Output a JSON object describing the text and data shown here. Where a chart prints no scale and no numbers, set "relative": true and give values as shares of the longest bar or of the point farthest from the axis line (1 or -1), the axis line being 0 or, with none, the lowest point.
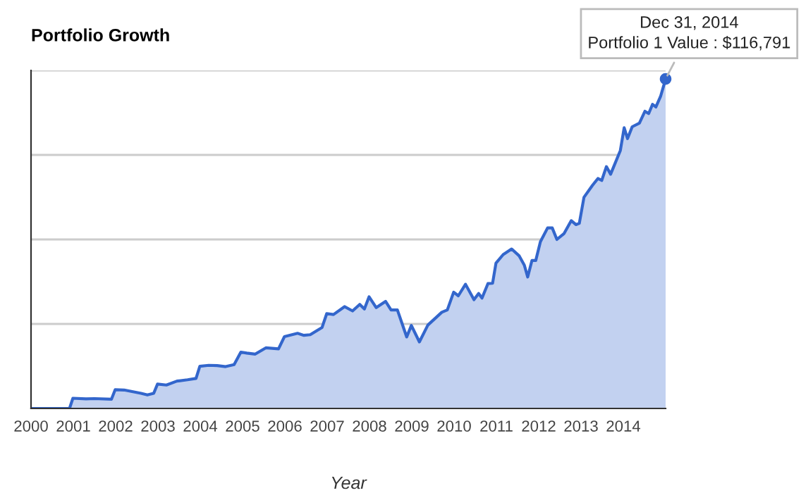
{
  "chart_data": {
    "type": "area",
    "title": "Portfolio Growth",
    "xlabel": "Year",
    "relative": true,
    "grid": "y",
    "xlim": [
      2000,
      2015
    ],
    "xticks": [
      2000,
      2001,
      2002,
      2003,
      2004,
      2005,
      2006,
      2007,
      2008,
      2009,
      2010,
      2011,
      2012,
      2013,
      2014
    ],
    "annotations": [
      {
        "text": "Dec 31, 2014\nPortfolio 1 Value : $116,791",
        "x": 2015.0,
        "y": 1.0
      }
    ],
    "series": [
      {
        "color": "#3366cc",
        "x": [
          2000.0,
          2000.91,
          2000.99,
          2001.3,
          2001.5,
          2001.9,
          2001.99,
          2002.2,
          2002.6,
          2002.75,
          2002.9,
          2002.99,
          2003.2,
          2003.45,
          2003.7,
          2003.9,
          2003.99,
          2004.2,
          2004.4,
          2004.6,
          2004.8,
          2004.96,
          2005.1,
          2005.3,
          2005.55,
          2005.85,
          2005.99,
          2006.3,
          2006.45,
          2006.6,
          2006.88,
          2006.99,
          2007.15,
          2007.41,
          2007.6,
          2007.77,
          2007.88,
          2007.99,
          2008.16,
          2008.38,
          2008.51,
          2008.66,
          2008.88,
          2008.99,
          2009.18,
          2009.38,
          2009.71,
          2009.84,
          2009.99,
          2010.1,
          2010.27,
          2010.47,
          2010.58,
          2010.66,
          2010.8,
          2010.91,
          2010.99,
          2011.16,
          2011.36,
          2011.54,
          2011.66,
          2011.74,
          2011.84,
          2011.93,
          2012.04,
          2012.21,
          2012.32,
          2012.43,
          2012.6,
          2012.77,
          2012.88,
          2012.96,
          2013.07,
          2013.27,
          2013.4,
          2013.49,
          2013.6,
          2013.7,
          2013.93,
          2014.02,
          2014.1,
          2014.21,
          2014.38,
          2014.51,
          2014.6,
          2014.69,
          2014.77,
          2014.88,
          2015.0
        ],
        "values": [
          0,
          0,
          0.031,
          0.029,
          0.03,
          0.028,
          0.057,
          0.056,
          0.046,
          0.041,
          0.046,
          0.074,
          0.071,
          0.083,
          0.087,
          0.091,
          0.128,
          0.131,
          0.13,
          0.127,
          0.133,
          0.171,
          0.168,
          0.165,
          0.184,
          0.181,
          0.218,
          0.228,
          0.222,
          0.224,
          0.246,
          0.288,
          0.285,
          0.309,
          0.296,
          0.316,
          0.302,
          0.339,
          0.306,
          0.325,
          0.299,
          0.299,
          0.217,
          0.252,
          0.202,
          0.253,
          0.292,
          0.299,
          0.353,
          0.342,
          0.377,
          0.33,
          0.349,
          0.335,
          0.379,
          0.38,
          0.441,
          0.467,
          0.484,
          0.463,
          0.435,
          0.399,
          0.449,
          0.449,
          0.506,
          0.548,
          0.548,
          0.513,
          0.531,
          0.57,
          0.558,
          0.562,
          0.641,
          0.677,
          0.698,
          0.692,
          0.734,
          0.711,
          0.783,
          0.852,
          0.819,
          0.855,
          0.866,
          0.902,
          0.895,
          0.923,
          0.915,
          0.947,
          1.0
        ]
      }
    ]
  }
}
